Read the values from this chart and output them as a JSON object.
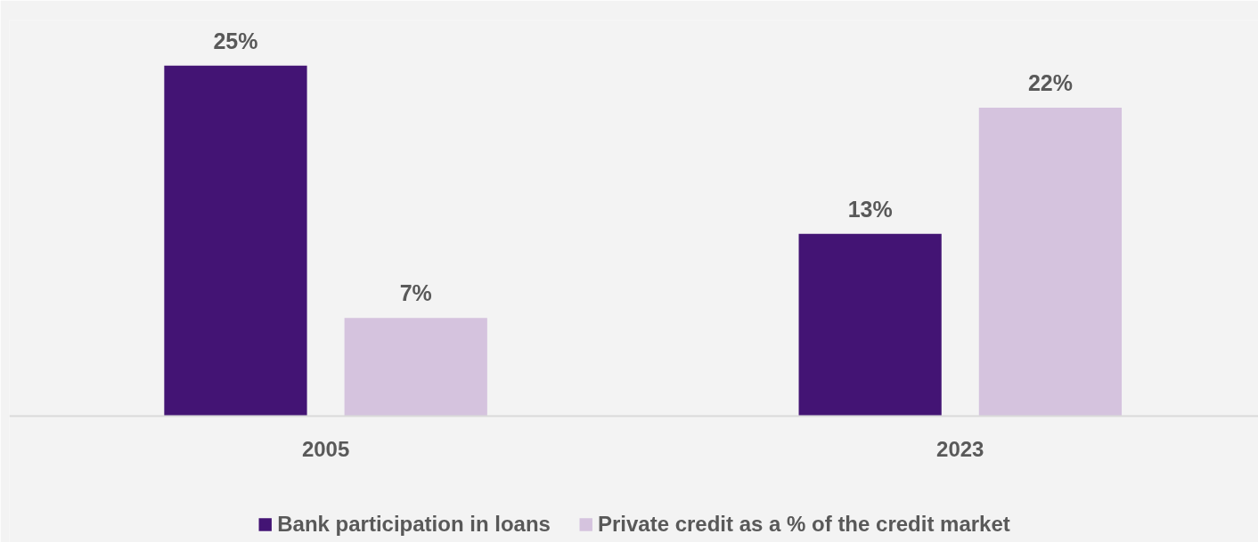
{
  "chart_data": {
    "type": "bar",
    "categories": [
      "2005",
      "2023"
    ],
    "series": [
      {
        "name": "Bank participation in loans",
        "color": "#431474",
        "values": [
          25,
          13
        ],
        "value_labels": [
          "25%",
          "13%"
        ]
      },
      {
        "name": "Private credit as a % of the credit market",
        "color": "#d5c3de",
        "values": [
          7,
          22
        ],
        "value_labels": [
          "7%",
          "22%"
        ]
      }
    ],
    "grid": false,
    "legend": "bottom",
    "tick_labels": "x"
  }
}
